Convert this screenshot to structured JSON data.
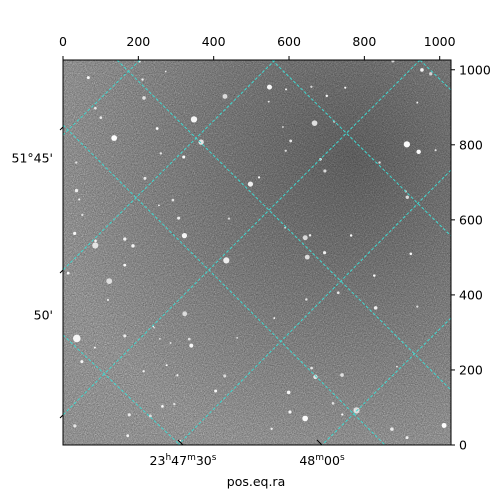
{
  "chart_data": {
    "type": "image",
    "xlabel": "pos.eq.ra",
    "xlim": [
      0,
      1030
    ],
    "ylim": [
      0,
      1026
    ],
    "xticks": [
      0,
      200,
      400,
      600,
      800,
      1000
    ],
    "yticks": [
      0,
      200,
      400,
      600,
      800,
      1000
    ],
    "world_xticks": [
      "23h47m30s",
      "48m00s"
    ],
    "world_yticks": [
      "51°45'",
      "50'"
    ],
    "grid": true,
    "grid_color": "#40d8d0"
  }
}
